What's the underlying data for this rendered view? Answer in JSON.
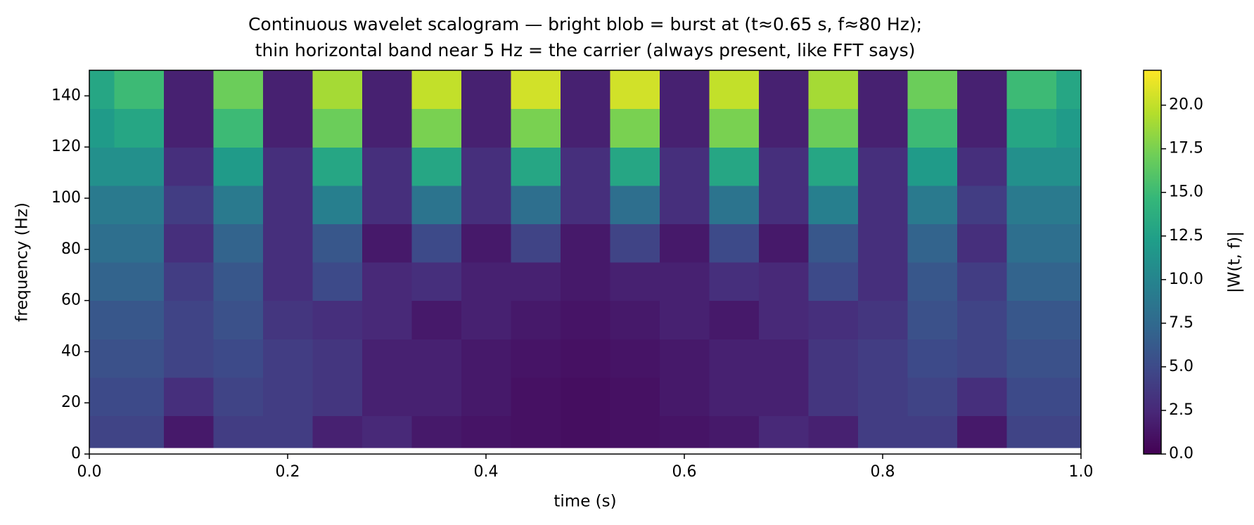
{
  "chart_data": {
    "type": "heatmap",
    "title": [
      "Continuous wavelet scalogram — bright blob = burst at (t≈0.65 s, f≈80 Hz);",
      "thin horizontal band near 5 Hz = the carrier (always present, like FFT says)"
    ],
    "xlabel": "time (s)",
    "ylabel": "frequency (Hz)",
    "colorbar_label": "|W(t, f)|",
    "colormap": "viridis",
    "x_edges": [
      0,
      0.025,
      0.075,
      0.125,
      0.175,
      0.225,
      0.275,
      0.325,
      0.375,
      0.425,
      0.475,
      0.525,
      0.575,
      0.625,
      0.675,
      0.725,
      0.775,
      0.825,
      0.875,
      0.925,
      0.975,
      1.0
    ],
    "y_edges": [
      2.5,
      15,
      30,
      45,
      60,
      75,
      90,
      105,
      120,
      135,
      150
    ],
    "z": [
      [
        4.5,
        4.5,
        1.5,
        4,
        4,
        2,
        2.5,
        1.5,
        1.2,
        1.0,
        0.8,
        1.0,
        1.2,
        1.5,
        2.5,
        2,
        4,
        4,
        1.5,
        4.5,
        4.5
      ],
      [
        5,
        5,
        3,
        4.5,
        4,
        3.5,
        2,
        2,
        1.5,
        1,
        0.8,
        1,
        1.5,
        2,
        2,
        3.5,
        4,
        4.5,
        3,
        5,
        5
      ],
      [
        5.5,
        5.5,
        4.5,
        5,
        4,
        3.5,
        2,
        2,
        1.5,
        1.2,
        1.0,
        1.2,
        1.5,
        2,
        2,
        3.5,
        4,
        5,
        4.5,
        5.5,
        5.5
      ],
      [
        6,
        6,
        4.5,
        5.5,
        3.5,
        3,
        2.5,
        1.5,
        2,
        1.5,
        1.2,
        1.5,
        2,
        1.5,
        2.5,
        3,
        3.5,
        5.5,
        4.5,
        6,
        6
      ],
      [
        7,
        7,
        4,
        6,
        3,
        5,
        2.5,
        3,
        2,
        2,
        1.5,
        2,
        2,
        3,
        2.5,
        5,
        3,
        6,
        4,
        7,
        7
      ],
      [
        8,
        8,
        3,
        7,
        3,
        6,
        1.5,
        5,
        1.5,
        4.5,
        1.5,
        4.5,
        1.5,
        5,
        1.5,
        6,
        3,
        7,
        3,
        8,
        8
      ],
      [
        9,
        9,
        4,
        9,
        3,
        9.5,
        3,
        8.5,
        3,
        8,
        3,
        8,
        3,
        8.5,
        3,
        9.5,
        3,
        9,
        4,
        9,
        9
      ],
      [
        11,
        11,
        3,
        12,
        3,
        13,
        3,
        13,
        3,
        13,
        3,
        13,
        3,
        13,
        3,
        13,
        3,
        12,
        3,
        11,
        11
      ],
      [
        12,
        13,
        2,
        15,
        2,
        17,
        2,
        17.5,
        2,
        17.5,
        2,
        17.5,
        2,
        17.5,
        2,
        17,
        2,
        15,
        2,
        13,
        12
      ],
      [
        13,
        15,
        2,
        17,
        2,
        19,
        2,
        20,
        2,
        20.5,
        2,
        20.5,
        2,
        20,
        2,
        19,
        2,
        17,
        2,
        15,
        13
      ]
    ],
    "xlim": [
      0,
      1.0
    ],
    "xticks": [
      {
        "value": 0,
        "label": "0.0"
      },
      {
        "value": 0.2,
        "label": "0.2"
      },
      {
        "value": 0.4,
        "label": "0.4"
      },
      {
        "value": 0.6,
        "label": "0.6"
      },
      {
        "value": 0.8,
        "label": "0.8"
      },
      {
        "value": 1.0,
        "label": "1.0"
      }
    ],
    "ylim": [
      0,
      150
    ],
    "yticks": [
      0,
      20,
      40,
      60,
      80,
      100,
      120,
      140
    ],
    "clim": [
      0,
      22
    ],
    "cticks": [
      {
        "value": 0,
        "label": "0.0"
      },
      {
        "value": 2.5,
        "label": "2.5"
      },
      {
        "value": 5,
        "label": "5.0"
      },
      {
        "value": 7.5,
        "label": "7.5"
      },
      {
        "value": 10,
        "label": "10.0"
      },
      {
        "value": 12.5,
        "label": "12.5"
      },
      {
        "value": 15,
        "label": "15.0"
      },
      {
        "value": 17.5,
        "label": "17.5"
      },
      {
        "value": 20,
        "label": "20.0"
      }
    ]
  }
}
